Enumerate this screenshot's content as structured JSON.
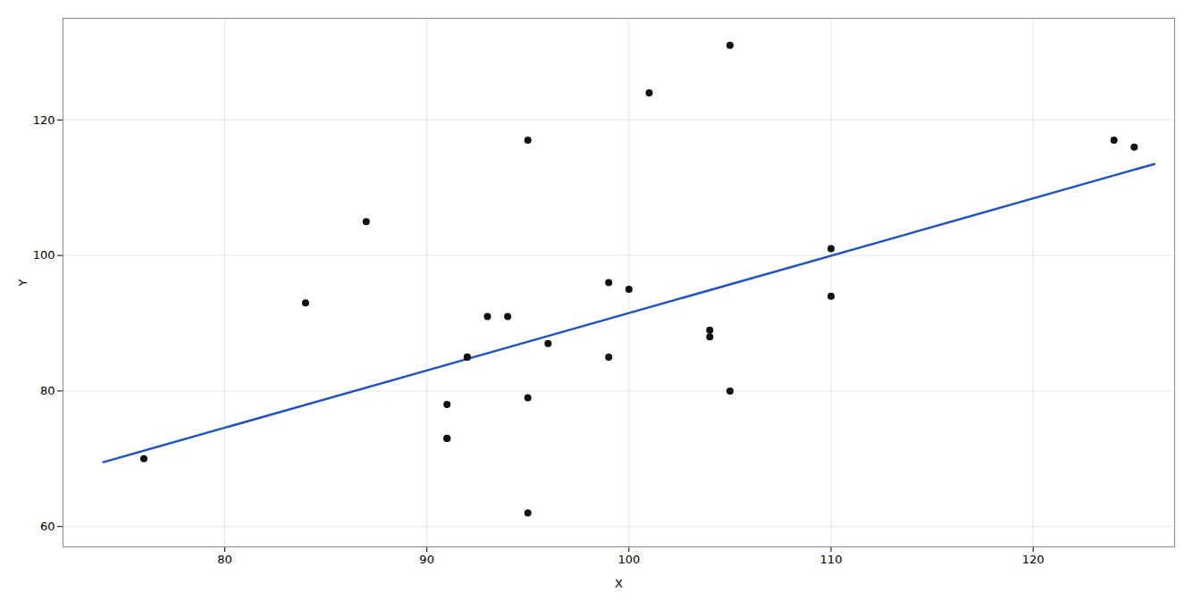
{
  "chart_data": {
    "type": "scatter",
    "xlabel": "X",
    "ylabel": "Y",
    "xlim": [
      72,
      127
    ],
    "ylim": [
      57,
      135
    ],
    "xticks": [
      80,
      90,
      100,
      110,
      120
    ],
    "yticks": [
      60,
      80,
      100,
      120
    ],
    "grid": true,
    "series": [
      {
        "type": "scatter",
        "color": "#111111",
        "x": [
          76,
          84,
          87,
          91,
          91,
          91,
          92,
          92,
          93,
          94,
          95,
          95,
          95,
          96,
          99,
          99,
          100,
          101,
          104,
          104,
          105,
          105,
          110,
          110,
          124,
          125
        ],
        "values": [
          70,
          93,
          105,
          78,
          73,
          73,
          85,
          85,
          91,
          91,
          117,
          79,
          62,
          87,
          96,
          85,
          95,
          124,
          89,
          88,
          80,
          131,
          101,
          94,
          117,
          116
        ]
      },
      {
        "type": "line",
        "color": "#2255BB",
        "x": [
          74,
          126
        ],
        "values": [
          69.5,
          113.5
        ]
      }
    ]
  }
}
